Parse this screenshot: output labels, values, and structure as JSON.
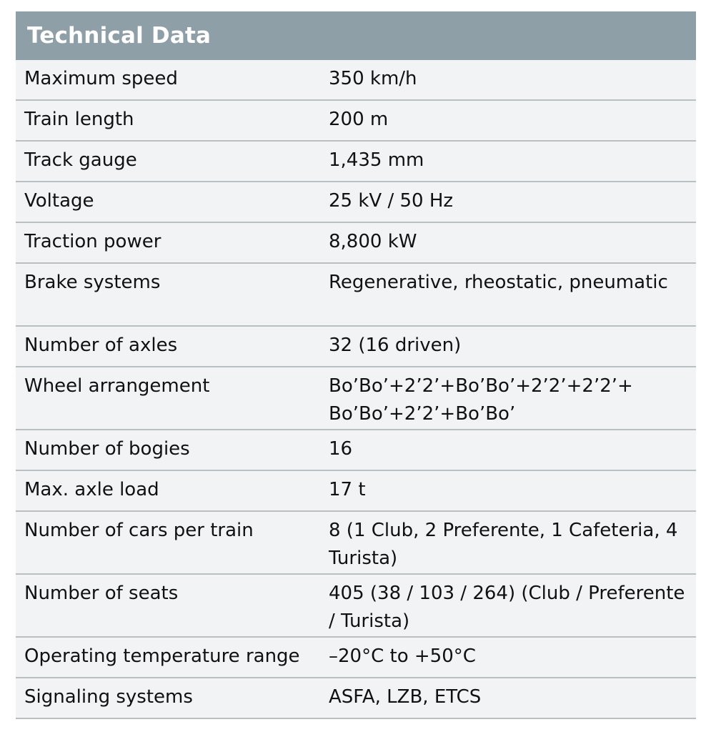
{
  "table": {
    "title": "Technical Data",
    "rows": [
      {
        "label": "Maximum speed",
        "value": "350 km/h"
      },
      {
        "label": "Train length",
        "value": "200 m"
      },
      {
        "label": "Track gauge",
        "value": "1,435 mm"
      },
      {
        "label": "Voltage",
        "value": "25 kV / 50 Hz"
      },
      {
        "label": "Traction power",
        "value": "8,800 kW"
      },
      {
        "label": "Brake systems",
        "value": "Regenerative, rheostatic, pneumatic"
      },
      {
        "label": "Number of axles",
        "value": "32 (16 driven)"
      },
      {
        "label": "Wheel arrangement",
        "value": "Bo’Bo’+2’2’+Bo’Bo’+2’2’+2’2’+ Bo’Bo’+2’2’+Bo’Bo’"
      },
      {
        "label": "Number of bogies",
        "value": "16"
      },
      {
        "label": "Max. axle load",
        "value": "17 t"
      },
      {
        "label": "Number of cars per train",
        "value": "8 (1 Club, 2 Preferente, 1 Cafeteria, 4 Turista)"
      },
      {
        "label": "Number of seats",
        "value": "405 (38 / 103 / 264) (Club / Preferente / Turista)"
      },
      {
        "label": "Operating temperature range",
        "value": "–20°C to +50°C"
      },
      {
        "label": "Signaling systems",
        "value": "ASFA, LZB, ETCS"
      }
    ]
  }
}
